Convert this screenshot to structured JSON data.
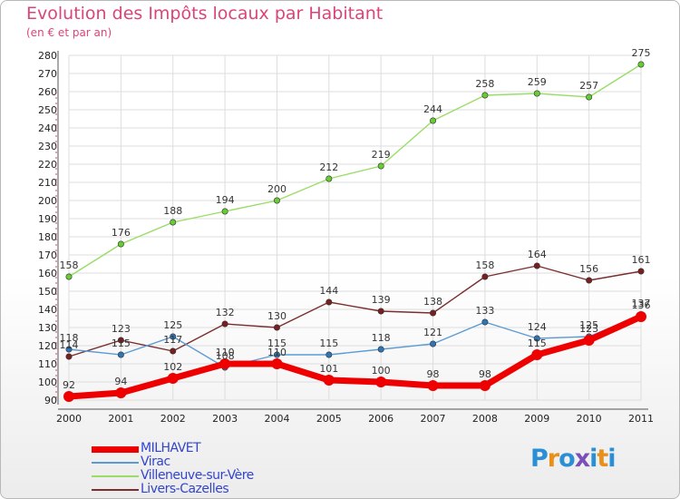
{
  "chart_data": {
    "type": "line",
    "title": "Evolution des Impôts locaux par Habitant",
    "subtitle": "(en € et par an)",
    "xlabel": "",
    "ylabel": "",
    "ylim": [
      90,
      280
    ],
    "ytick_step": 10,
    "categories": [
      "2000",
      "2001",
      "2002",
      "2003",
      "2004",
      "2005",
      "2006",
      "2007",
      "2008",
      "2009",
      "2010",
      "2011"
    ],
    "series": [
      {
        "name": "MILHAVET",
        "color": "#ee0000",
        "marker_color": "#ee0000",
        "width": "thick",
        "values": [
          92,
          94,
          102,
          110,
          110,
          101,
          100,
          98,
          98,
          115,
          123,
          136
        ]
      },
      {
        "name": "Virac",
        "color": "#5b9bd5",
        "marker_color": "#2e75b6",
        "width": "thin",
        "values": [
          118,
          115,
          125,
          108,
          115,
          115,
          118,
          121,
          133,
          124,
          125,
          137
        ]
      },
      {
        "name": "Villeneuve-sur-Vère",
        "color": "#99dd66",
        "marker_color": "#66cc33",
        "width": "thin",
        "values": [
          158,
          176,
          188,
          194,
          200,
          212,
          219,
          244,
          258,
          259,
          257,
          275
        ]
      },
      {
        "name": "Livers-Cazelles",
        "color": "#7a2e2e",
        "marker_color": "#7a1f1f",
        "width": "thin",
        "values": [
          114,
          123,
          117,
          132,
          130,
          144,
          139,
          138,
          158,
          164,
          156,
          161
        ]
      }
    ],
    "legend_position": "bottom-left"
  },
  "brand": {
    "letters": [
      "P",
      "r",
      "o",
      "x",
      "i",
      "t",
      "i"
    ],
    "colors": [
      "#2a8fd6",
      "#e8901a",
      "#2a8fd6",
      "#7a4fb8",
      "#2a8fd6",
      "#e8901a",
      "#2a8fd6"
    ]
  }
}
